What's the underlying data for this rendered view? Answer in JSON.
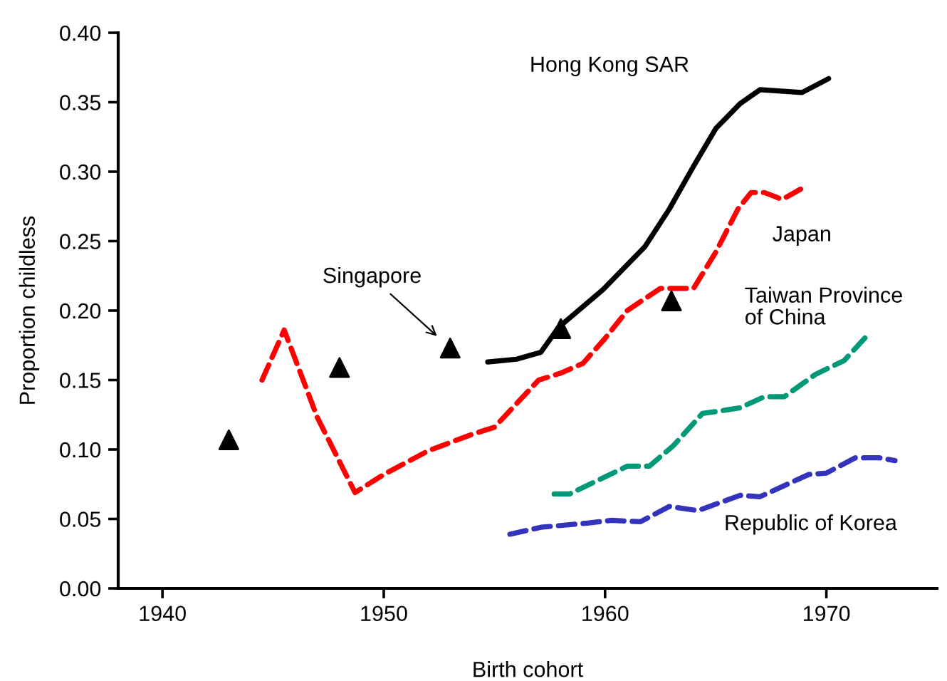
{
  "chart_data": {
    "type": "line",
    "xlabel": "Birth cohort",
    "ylabel": "Proportion childless",
    "xlim": [
      1938,
      1975
    ],
    "xticks": [
      1940,
      1950,
      1960,
      1970
    ],
    "ylim": [
      0,
      0.4
    ],
    "yticks": [
      {
        "value": 0,
        "label": "0.00"
      },
      {
        "value": 0.05,
        "label": "0.05"
      },
      {
        "value": 0.1,
        "label": "0.10"
      },
      {
        "value": 0.15,
        "label": "0.15"
      },
      {
        "value": 0.2,
        "label": "0.20"
      },
      {
        "value": 0.25,
        "label": "0.25"
      },
      {
        "value": 0.3,
        "label": "0.30"
      },
      {
        "value": 0.35,
        "label": "0.35"
      },
      {
        "value": 0.4,
        "label": "0.40"
      }
    ],
    "grid": false,
    "legend": false,
    "series": [
      {
        "name": "Hong Kong SAR",
        "color": "#000000",
        "line_style": "solid",
        "x": [
          1954.7,
          1956,
          1957.1,
          1957.9,
          1959.9,
          1961.8,
          1962.9,
          1964,
          1965,
          1966.1,
          1967,
          1968.9,
          1970.1
        ],
        "values": [
          0.163,
          0.165,
          0.17,
          0.188,
          0.215,
          0.246,
          0.273,
          0.304,
          0.331,
          0.349,
          0.359,
          0.357,
          0.367
        ]
      },
      {
        "name": "Japan",
        "color": "#ff0000",
        "line_style": "dashed",
        "x": [
          1944.5,
          1945.5,
          1947,
          1948.7,
          1950,
          1952,
          1954,
          1955,
          1956,
          1957,
          1958,
          1959,
          1960,
          1961,
          1962.5,
          1964,
          1965,
          1966,
          1966.6,
          1967.2,
          1968,
          1968.9
        ],
        "values": [
          0.15,
          0.186,
          0.123,
          0.069,
          0.082,
          0.099,
          0.111,
          0.116,
          0.133,
          0.15,
          0.155,
          0.162,
          0.18,
          0.2,
          0.216,
          0.216,
          0.242,
          0.273,
          0.285,
          0.285,
          0.28,
          0.288
        ]
      },
      {
        "name": "Taiwan Province of China",
        "color": "#009977",
        "line_style": "dashed",
        "x": [
          1957.7,
          1958.4,
          1961,
          1962,
          1963.1,
          1964.4,
          1965.3,
          1966.1,
          1967.2,
          1968.1,
          1969.5,
          1970.8,
          1971.9
        ],
        "values": [
          0.068,
          0.068,
          0.088,
          0.088,
          0.103,
          0.126,
          0.128,
          0.13,
          0.138,
          0.138,
          0.154,
          0.164,
          0.183
        ]
      },
      {
        "name": "Republic of Korea",
        "color": "#3333bb",
        "line_style": "dashed",
        "x": [
          1955.7,
          1957.1,
          1959.2,
          1960.3,
          1961.6,
          1962.9,
          1964.2,
          1966.1,
          1967,
          1969.2,
          1970,
          1971.3,
          1972.4,
          1973.1
        ],
        "values": [
          0.039,
          0.044,
          0.047,
          0.049,
          0.048,
          0.059,
          0.056,
          0.067,
          0.066,
          0.082,
          0.083,
          0.094,
          0.094,
          0.092
        ]
      },
      {
        "name": "Singapore",
        "type": "scatter",
        "color": "#000000",
        "marker": "triangle",
        "x": [
          1943,
          1948,
          1953,
          1958,
          1963
        ],
        "values": [
          0.107,
          0.159,
          0.173,
          0.187,
          0.207
        ]
      }
    ]
  }
}
